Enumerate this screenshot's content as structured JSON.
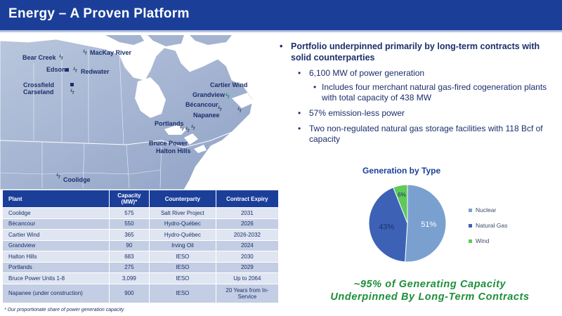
{
  "header": {
    "title": "Energy – A Proven Platform"
  },
  "map": {
    "labels": {
      "bear_creek": "Bear Creek",
      "mackay_river": "MacKay River",
      "edson": "Edson",
      "redwater": "Redwater",
      "crossfield": "Crossfield",
      "carseland": "Carseland",
      "cartier_wind": "Cartier Wind",
      "grandview": "Grandview",
      "becancour": "Bécancour",
      "napanee": "Napanee",
      "portlands": "Portlands",
      "bruce_power": "Bruce Power",
      "halton_hills": "Halton Hills",
      "coolidge": "Coolidge"
    }
  },
  "bullets": {
    "main": "Portfolio underpinned primarily by long-term contracts with solid counterparties",
    "power": "6,100 MW of power generation",
    "merchant": "Includes four merchant natural gas-fired cogeneration plants with total capacity of 438 MW",
    "emission": "57% emission-less power",
    "storage": "Two non-regulated natural gas storage facilities with 118 Bcf of capacity"
  },
  "chart_data": {
    "type": "pie",
    "title": "Generation by Type",
    "categories": [
      "Nuclear",
      "Natural Gas",
      "Wind"
    ],
    "values": [
      51,
      43,
      6
    ],
    "value_labels": [
      "51%",
      "43%",
      "6%"
    ],
    "colors": [
      "#7aa0cf",
      "#3d62b5",
      "#5fc95a"
    ],
    "legend": "right"
  },
  "tagline": {
    "line1": "~95% of Generating Capacity",
    "line2": "Underpinned By Long-Term Contracts"
  },
  "table": {
    "headers": {
      "plant": "Plant",
      "capacity": "Capacity (MW)*",
      "counterparty": "Counterparty",
      "expiry": "Contract Expiry"
    },
    "rows": [
      {
        "plant": "Coolidge",
        "capacity": "575",
        "counterparty": "Salt River Project",
        "expiry": "2031"
      },
      {
        "plant": "Bécancour",
        "capacity": "550",
        "counterparty": "Hydro-Québec",
        "expiry": "2026"
      },
      {
        "plant": "Cartier Wind",
        "capacity": "365",
        "counterparty": "Hydro-Québec",
        "expiry": "2026-2032"
      },
      {
        "plant": "Grandview",
        "capacity": "90",
        "counterparty": "Irving Oil",
        "expiry": "2024"
      },
      {
        "plant": "Halton Hills",
        "capacity": "683",
        "counterparty": "IESO",
        "expiry": "2030"
      },
      {
        "plant": "Portlands",
        "capacity": "275",
        "counterparty": "IESO",
        "expiry": "2029"
      },
      {
        "plant": "Bruce Power Units 1-8",
        "capacity": "3,099",
        "counterparty": "IESO",
        "expiry": "Up to 2064"
      },
      {
        "plant": "Napanee (under construction)",
        "capacity": "900",
        "counterparty": "IESO",
        "expiry": "20 Years from In-Service"
      }
    ]
  },
  "footnote": "* Our proportionate share of power generation capacity"
}
